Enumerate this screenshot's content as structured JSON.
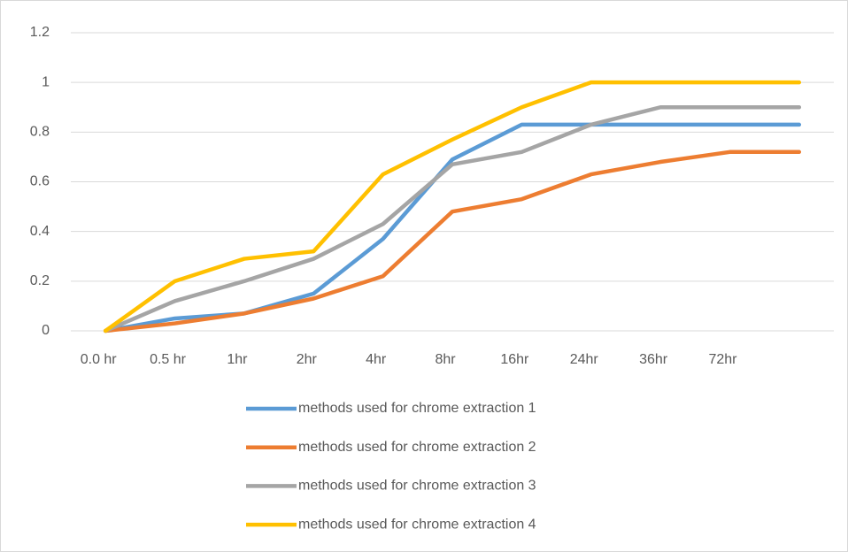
{
  "chart_data": {
    "type": "line",
    "categories": [
      "0.0 hr",
      "0.5 hr",
      "1hr",
      "2hr",
      "4hr",
      "8hr",
      "16hr",
      "24hr",
      "36hr",
      "72hr",
      null
    ],
    "series": [
      {
        "name": "methods used for chrome extraction 1",
        "color": "#5b9bd5",
        "values": [
          0,
          0.05,
          0.07,
          0.15,
          0.37,
          0.69,
          0.83,
          0.83,
          0.83,
          0.83,
          0.83
        ]
      },
      {
        "name": "methods used for chrome extraction 2",
        "color": "#ed7d31",
        "values": [
          0,
          0.03,
          0.07,
          0.13,
          0.22,
          0.48,
          0.53,
          0.63,
          0.68,
          0.72,
          0.72
        ]
      },
      {
        "name": "methods used for chrome extraction 3",
        "color": "#a5a5a5",
        "values": [
          0,
          0.12,
          0.2,
          0.29,
          0.43,
          0.67,
          0.72,
          0.83,
          0.9,
          0.9,
          0.9
        ]
      },
      {
        "name": "methods used for chrome extraction 4",
        "color": "#ffc000",
        "values": [
          0,
          0.2,
          0.29,
          0.32,
          0.63,
          0.77,
          0.9,
          1,
          1,
          1,
          1
        ]
      }
    ],
    "ylim": [
      0,
      1.2
    ],
    "yticks": [
      0,
      0.2,
      0.4,
      0.6,
      0.8,
      1,
      1.2
    ],
    "grid": true
  }
}
